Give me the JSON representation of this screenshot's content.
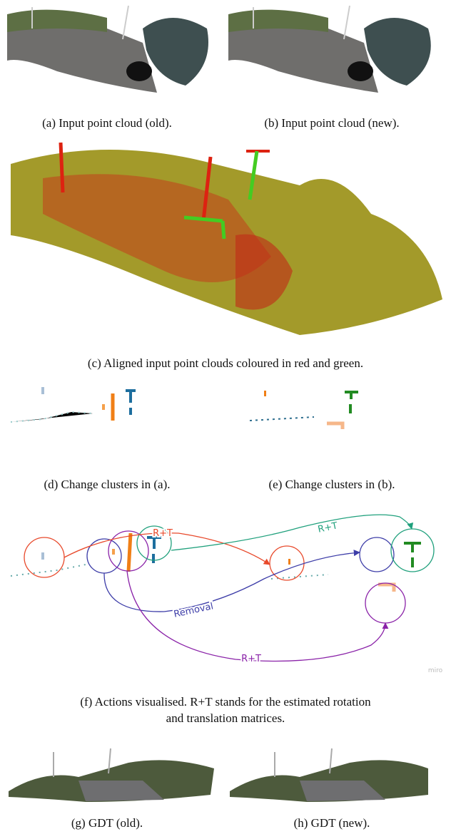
{
  "panels": [
    {
      "caption": "(a) Input point cloud (old)."
    },
    {
      "caption": "(b) Input point cloud (new)."
    },
    {
      "caption": "(c) Aligned input point clouds coloured in red and green."
    },
    {
      "caption": "(d) Change clusters in (a)."
    },
    {
      "caption": "(e) Change clusters in (b)."
    },
    {
      "caption_lines": [
        "(f) Actions visualised. R+T stands for the estimated rotation",
        "and translation matrices."
      ],
      "labels": [
        "R+T",
        "R+T",
        "Removal",
        "R+T"
      ],
      "watermark": "miro"
    },
    {
      "caption": "(g) GDT (old)."
    },
    {
      "caption": "(h) GDT (new)."
    }
  ]
}
